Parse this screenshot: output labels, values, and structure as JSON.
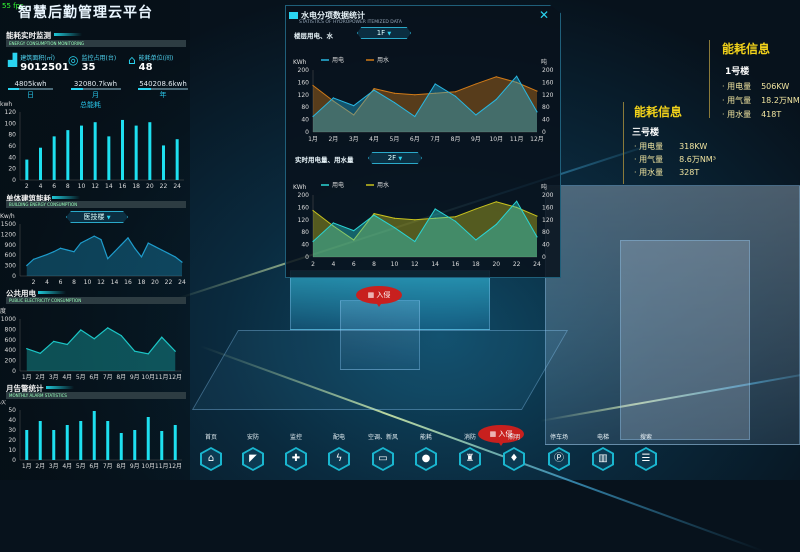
{
  "app": {
    "title": "智慧后勤管理云平台",
    "fps": "55 fps"
  },
  "colors": {
    "accent": "#1ec8d8",
    "bar": "#1ee0f0",
    "elec1": "#29b6e0",
    "water1": "#d07a17",
    "elec2": "#2ad4d4",
    "water2": "#c8c21e",
    "info_title": "#f2d21a",
    "alarm": "#c8201e"
  },
  "monitor": {
    "title": "能耗实时监测",
    "subtitle": "ENERGY CONSUMPTION MONITORING",
    "stats": [
      {
        "icon": "building-area-icon",
        "label": "建筑面积(㎡)",
        "value": "9012501"
      },
      {
        "icon": "camera-icon",
        "label": "监控占用(台)",
        "value": "35"
      },
      {
        "icon": "home-unit-icon",
        "label": "能耗单位(间)",
        "value": "48"
      }
    ],
    "periods": [
      {
        "value": "4805kwh",
        "label": "日"
      },
      {
        "value": "32080.7kwh",
        "label": "月"
      },
      {
        "value": "540208.6kwh",
        "label": "年"
      }
    ],
    "chart_title": "总能耗"
  },
  "building": {
    "title": "单体建筑能耗",
    "subtitle": "BUILDING ENERGY CONSUMPTION",
    "dropdown": "医技楼"
  },
  "public": {
    "title": "公共用电",
    "subtitle": "PUBLIC ELECTRICITY CONSUMPTION"
  },
  "alarm": {
    "title": "月告警统计",
    "subtitle": "MONTHLY ALARM STATISTICS"
  },
  "popup": {
    "title": "水电分项数据统计",
    "subtitle": "STATISTICS OF HYDROPOWER ITEMIZED DATA",
    "close_icon": "close-icon",
    "section1": "楼层用电、水",
    "floor1": "1F",
    "section2": "实时用电量、用水量",
    "floor2": "2F"
  },
  "chart_data": [
    {
      "id": "total",
      "type": "bar",
      "title": "总能耗",
      "ylabel": "kwh",
      "categories": [
        "2",
        "4",
        "6",
        "8",
        "10",
        "12",
        "14",
        "16",
        "18",
        "20",
        "22",
        "24"
      ],
      "values": [
        36,
        57,
        77,
        88,
        96,
        102,
        77,
        106,
        96,
        102,
        61,
        72
      ],
      "ylim": [
        0,
        120
      ],
      "yticks": [
        0,
        20,
        40,
        60,
        80,
        100,
        120
      ]
    },
    {
      "id": "building",
      "type": "area",
      "ylabel": "Kw/h",
      "x": [
        1,
        2,
        3,
        4,
        5,
        6,
        7,
        8,
        9,
        10,
        11,
        12,
        13,
        14,
        15,
        16,
        17,
        18,
        19,
        20,
        21,
        22,
        23,
        24
      ],
      "values": [
        300,
        480,
        550,
        620,
        700,
        800,
        750,
        700,
        950,
        1050,
        1150,
        1050,
        500,
        700,
        900,
        1100,
        800,
        550,
        950,
        850,
        750,
        650,
        550,
        400
      ],
      "xticks": [
        2,
        4,
        6,
        8,
        10,
        12,
        14,
        16,
        18,
        20,
        22,
        24
      ],
      "ylim": [
        0,
        1500
      ],
      "yticks": [
        0,
        300,
        600,
        900,
        1200,
        1500
      ]
    },
    {
      "id": "public",
      "type": "area",
      "ylabel": "度",
      "categories": [
        "1月",
        "2月",
        "3月",
        "4月",
        "5月",
        "6月",
        "7月",
        "8月",
        "9月",
        "10月",
        "11月",
        "12月"
      ],
      "values": [
        430,
        340,
        570,
        510,
        790,
        620,
        830,
        680,
        380,
        330,
        650,
        380
      ],
      "ylim": [
        0,
        1000
      ],
      "yticks": [
        0,
        200,
        400,
        600,
        800,
        1000
      ]
    },
    {
      "id": "alarm",
      "type": "bar",
      "ylabel": "次",
      "categories": [
        "1月",
        "2月",
        "3月",
        "4月",
        "5月",
        "6月",
        "7月",
        "8月",
        "9月",
        "10月",
        "11月",
        "12月"
      ],
      "values": [
        30,
        39,
        30,
        35,
        39,
        49,
        39,
        27,
        30,
        43,
        29,
        35
      ],
      "ylim": [
        0,
        50
      ],
      "yticks": [
        0,
        10,
        20,
        30,
        40,
        50
      ]
    },
    {
      "id": "floor",
      "type": "area",
      "ylabel": "KWh",
      "ylabel_right": "吨",
      "categories": [
        "1月",
        "2月",
        "3月",
        "4月",
        "5月",
        "6月",
        "7月",
        "8月",
        "9月",
        "10月",
        "11月",
        "12月"
      ],
      "series": [
        {
          "name": "用电",
          "values": [
            50,
            110,
            85,
            135,
            95,
            50,
            155,
            115,
            55,
            105,
            180,
            65
          ]
        },
        {
          "name": "用水",
          "values": [
            150,
            100,
            55,
            140,
            125,
            120,
            125,
            130,
            155,
            178,
            160,
            132
          ]
        }
      ],
      "ylim": [
        0,
        200
      ],
      "yticks": [
        0,
        40,
        80,
        120,
        160,
        200
      ]
    },
    {
      "id": "realtime",
      "type": "area",
      "ylabel": "KWh",
      "ylabel_right": "吨",
      "categories": [
        "2",
        "4",
        "6",
        "8",
        "10",
        "12",
        "14",
        "16",
        "18",
        "20",
        "22",
        "24"
      ],
      "series": [
        {
          "name": "用电",
          "values": [
            50,
            110,
            85,
            135,
            95,
            50,
            155,
            115,
            55,
            105,
            180,
            65
          ]
        },
        {
          "name": "用水",
          "values": [
            150,
            100,
            55,
            140,
            125,
            120,
            125,
            130,
            155,
            178,
            160,
            132
          ]
        }
      ],
      "ylim": [
        0,
        200
      ],
      "yticks": [
        0,
        40,
        80,
        120,
        160,
        200
      ]
    }
  ],
  "info": [
    {
      "title": "能耗信息",
      "building": "1号楼",
      "rows": [
        {
          "label": "用电量",
          "value": "506KW"
        },
        {
          "label": "用气量",
          "value": "18.2万NM³"
        },
        {
          "label": "用水量",
          "value": "418T"
        }
      ]
    },
    {
      "title": "能耗信息",
      "building": "三号楼",
      "rows": [
        {
          "label": "用电量",
          "value": "318KW"
        },
        {
          "label": "用气量",
          "value": "8.6万NM³"
        },
        {
          "label": "用水量",
          "value": "328T"
        }
      ]
    }
  ],
  "alerts": [
    {
      "label": "入侵",
      "icon": "intrusion-icon"
    },
    {
      "label": "入侵",
      "icon": "intrusion-icon"
    }
  ],
  "nav": [
    {
      "label": "首页",
      "icon": "home-icon",
      "glyph": "⌂"
    },
    {
      "label": "安防",
      "icon": "cctv-icon",
      "glyph": "◤"
    },
    {
      "label": "监控",
      "icon": "shield-icon",
      "glyph": "✚"
    },
    {
      "label": "配电",
      "icon": "lightning-icon",
      "glyph": "ϟ"
    },
    {
      "label": "空调、新风",
      "icon": "air-conditioner-icon",
      "glyph": "▭"
    },
    {
      "label": "能耗",
      "icon": "drop-icon",
      "glyph": "●"
    },
    {
      "label": "消防",
      "icon": "hydrant-icon",
      "glyph": "♜"
    },
    {
      "label": "照明",
      "icon": "bulb-icon",
      "glyph": "♦"
    },
    {
      "label": "停车场",
      "icon": "parking-icon",
      "glyph": "Ⓟ"
    },
    {
      "label": "电梯",
      "icon": "elevator-icon",
      "glyph": "▥"
    },
    {
      "label": "搜索",
      "icon": "search-list-icon",
      "glyph": "☰"
    }
  ]
}
